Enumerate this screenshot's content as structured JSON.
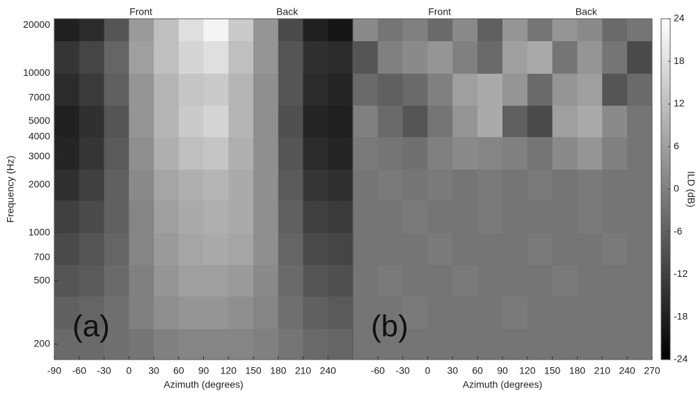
{
  "chart_data": [
    {
      "type": "heatmap",
      "panel_label": "(a)",
      "top_labels": [
        "Front",
        "Back"
      ],
      "x_label": "Azimuth (degrees)",
      "y_label": "Frequency (Hz)",
      "xbins": [
        -90,
        -60,
        -30,
        0,
        30,
        60,
        90,
        120,
        150,
        180,
        210,
        240,
        270
      ],
      "ybins": [
        160,
        250,
        400,
        630,
        1000,
        1600,
        2500,
        4000,
        6300,
        10000,
        16000,
        22000
      ],
      "xlim": [
        -90,
        270
      ],
      "ylim": [
        160,
        22000
      ],
      "ylog": true,
      "colormap": "gray",
      "xticks": [
        -90,
        -60,
        -30,
        0,
        30,
        60,
        90,
        120,
        150,
        180,
        210,
        240
      ],
      "yticks": [
        200,
        500,
        700,
        1000,
        2000,
        3000,
        4000,
        5000,
        7000,
        10000,
        20000
      ],
      "z": [
        [
          -4,
          -4,
          -3,
          -2,
          0,
          1,
          1,
          1,
          0,
          -2,
          -4,
          -5
        ],
        [
          -6,
          -5,
          -3,
          0,
          3,
          4,
          4,
          3,
          1,
          -3,
          -6,
          -7
        ],
        [
          -8,
          -7,
          -4,
          0,
          4,
          6,
          6,
          5,
          2,
          -4,
          -8,
          -9
        ],
        [
          -10,
          -8,
          -5,
          1,
          5,
          7,
          8,
          7,
          3,
          -5,
          -10,
          -11
        ],
        [
          -12,
          -10,
          -6,
          1,
          6,
          8,
          9,
          8,
          3,
          -6,
          -12,
          -13
        ],
        [
          -15,
          -12,
          -6,
          2,
          7,
          9,
          10,
          8,
          3,
          -7,
          -14,
          -15
        ],
        [
          -17,
          -14,
          -7,
          3,
          9,
          12,
          13,
          9,
          3,
          -8,
          -16,
          -17
        ],
        [
          -18,
          -15,
          -8,
          4,
          10,
          14,
          16,
          10,
          3,
          -9,
          -17,
          -18
        ],
        [
          -16,
          -13,
          -6,
          4,
          10,
          13,
          14,
          10,
          3,
          -8,
          -16,
          -17
        ],
        [
          -14,
          -11,
          -5,
          6,
          12,
          16,
          18,
          12,
          4,
          -8,
          -15,
          -16
        ],
        [
          -18,
          -16,
          -8,
          5,
          12,
          18,
          22,
          14,
          4,
          -10,
          -18,
          -20
        ]
      ]
    },
    {
      "type": "heatmap",
      "panel_label": "(b)",
      "top_labels": [
        "Front",
        "Back"
      ],
      "x_label": "Azimuth (degrees)",
      "xbins": [
        -90,
        -60,
        -30,
        0,
        30,
        60,
        90,
        120,
        150,
        180,
        210,
        240,
        270
      ],
      "ybins": [
        160,
        250,
        400,
        630,
        1000,
        1600,
        2500,
        4000,
        6300,
        10000,
        16000,
        22000
      ],
      "xlim": [
        -90,
        270
      ],
      "ylim": [
        160,
        22000
      ],
      "ylog": true,
      "colormap": "gray",
      "xticks": [
        -60,
        -30,
        0,
        30,
        60,
        90,
        120,
        150,
        180,
        210,
        240,
        270
      ],
      "z": [
        [
          -2,
          -2,
          -2,
          -2,
          -2,
          -2,
          -2,
          -2,
          -2,
          -2,
          -2,
          -2
        ],
        [
          -2,
          -2,
          -1,
          -2,
          -2,
          -2,
          -1,
          -2,
          -2,
          -2,
          -2,
          -2
        ],
        [
          -2,
          -1,
          -2,
          -2,
          -1,
          -2,
          -2,
          -2,
          -1,
          -2,
          -2,
          -2
        ],
        [
          -2,
          -2,
          -2,
          -1,
          -2,
          -2,
          -2,
          -1,
          -2,
          -2,
          -1,
          -2
        ],
        [
          -2,
          -2,
          -1,
          -2,
          -2,
          -1,
          -2,
          -2,
          -2,
          -1,
          -2,
          -2
        ],
        [
          -2,
          -1,
          -2,
          -1,
          -2,
          -1,
          -2,
          -1,
          -2,
          -1,
          -2,
          -2
        ],
        [
          -1,
          -2,
          -3,
          0,
          2,
          1,
          0,
          -2,
          2,
          4,
          0,
          -2
        ],
        [
          0,
          -4,
          -8,
          -2,
          4,
          8,
          -6,
          -10,
          6,
          8,
          2,
          -2
        ],
        [
          -4,
          -6,
          -4,
          0,
          6,
          8,
          4,
          -4,
          4,
          6,
          -8,
          -4
        ],
        [
          -8,
          0,
          2,
          4,
          0,
          -4,
          6,
          8,
          -2,
          4,
          -2,
          -10
        ],
        [
          2,
          -2,
          0,
          -4,
          2,
          -6,
          4,
          -2,
          4,
          2,
          -4,
          -2
        ]
      ]
    }
  ],
  "colorbar": {
    "label": "ILD (dB)",
    "lim": [
      -24,
      24
    ],
    "ticks": [
      -24,
      -18,
      -12,
      -6,
      0,
      6,
      12,
      18,
      24
    ]
  }
}
